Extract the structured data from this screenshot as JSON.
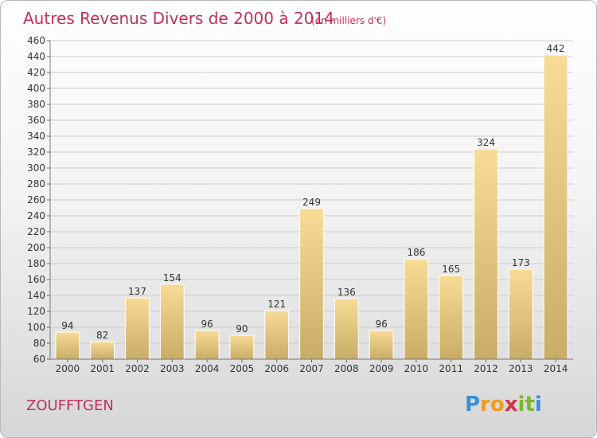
{
  "chart_data": {
    "type": "bar",
    "title": "Autres Revenus Divers de 2000 à 2014",
    "subtitle": "(en milliers d'€)",
    "categories": [
      "2000",
      "2001",
      "2002",
      "2003",
      "2004",
      "2005",
      "2006",
      "2007",
      "2008",
      "2009",
      "2010",
      "2011",
      "2012",
      "2013",
      "2014"
    ],
    "values": [
      94,
      82,
      137,
      154,
      96,
      90,
      121,
      249,
      136,
      96,
      186,
      165,
      324,
      173,
      442
    ],
    "ylim": [
      60,
      460
    ],
    "yticks": [
      60,
      80,
      100,
      120,
      140,
      160,
      180,
      200,
      220,
      240,
      260,
      280,
      300,
      320,
      340,
      360,
      380,
      400,
      420,
      440,
      460
    ],
    "grid": true,
    "colors": {
      "bar_light": "#f8dc96",
      "bar_dark": "#c9ac66",
      "grid": "#cccccc",
      "title": "#c0305a"
    }
  },
  "commune": "ZOUFFTGEN",
  "logo": {
    "letters": [
      "P",
      "r",
      "o",
      "x",
      "i",
      "t",
      "i"
    ],
    "colors": [
      "#3a8fd8",
      "#f29a1a",
      "#f29a1a",
      "#d8334a",
      "#7ab82e",
      "#7ab82e",
      "#3a8fd8"
    ]
  }
}
